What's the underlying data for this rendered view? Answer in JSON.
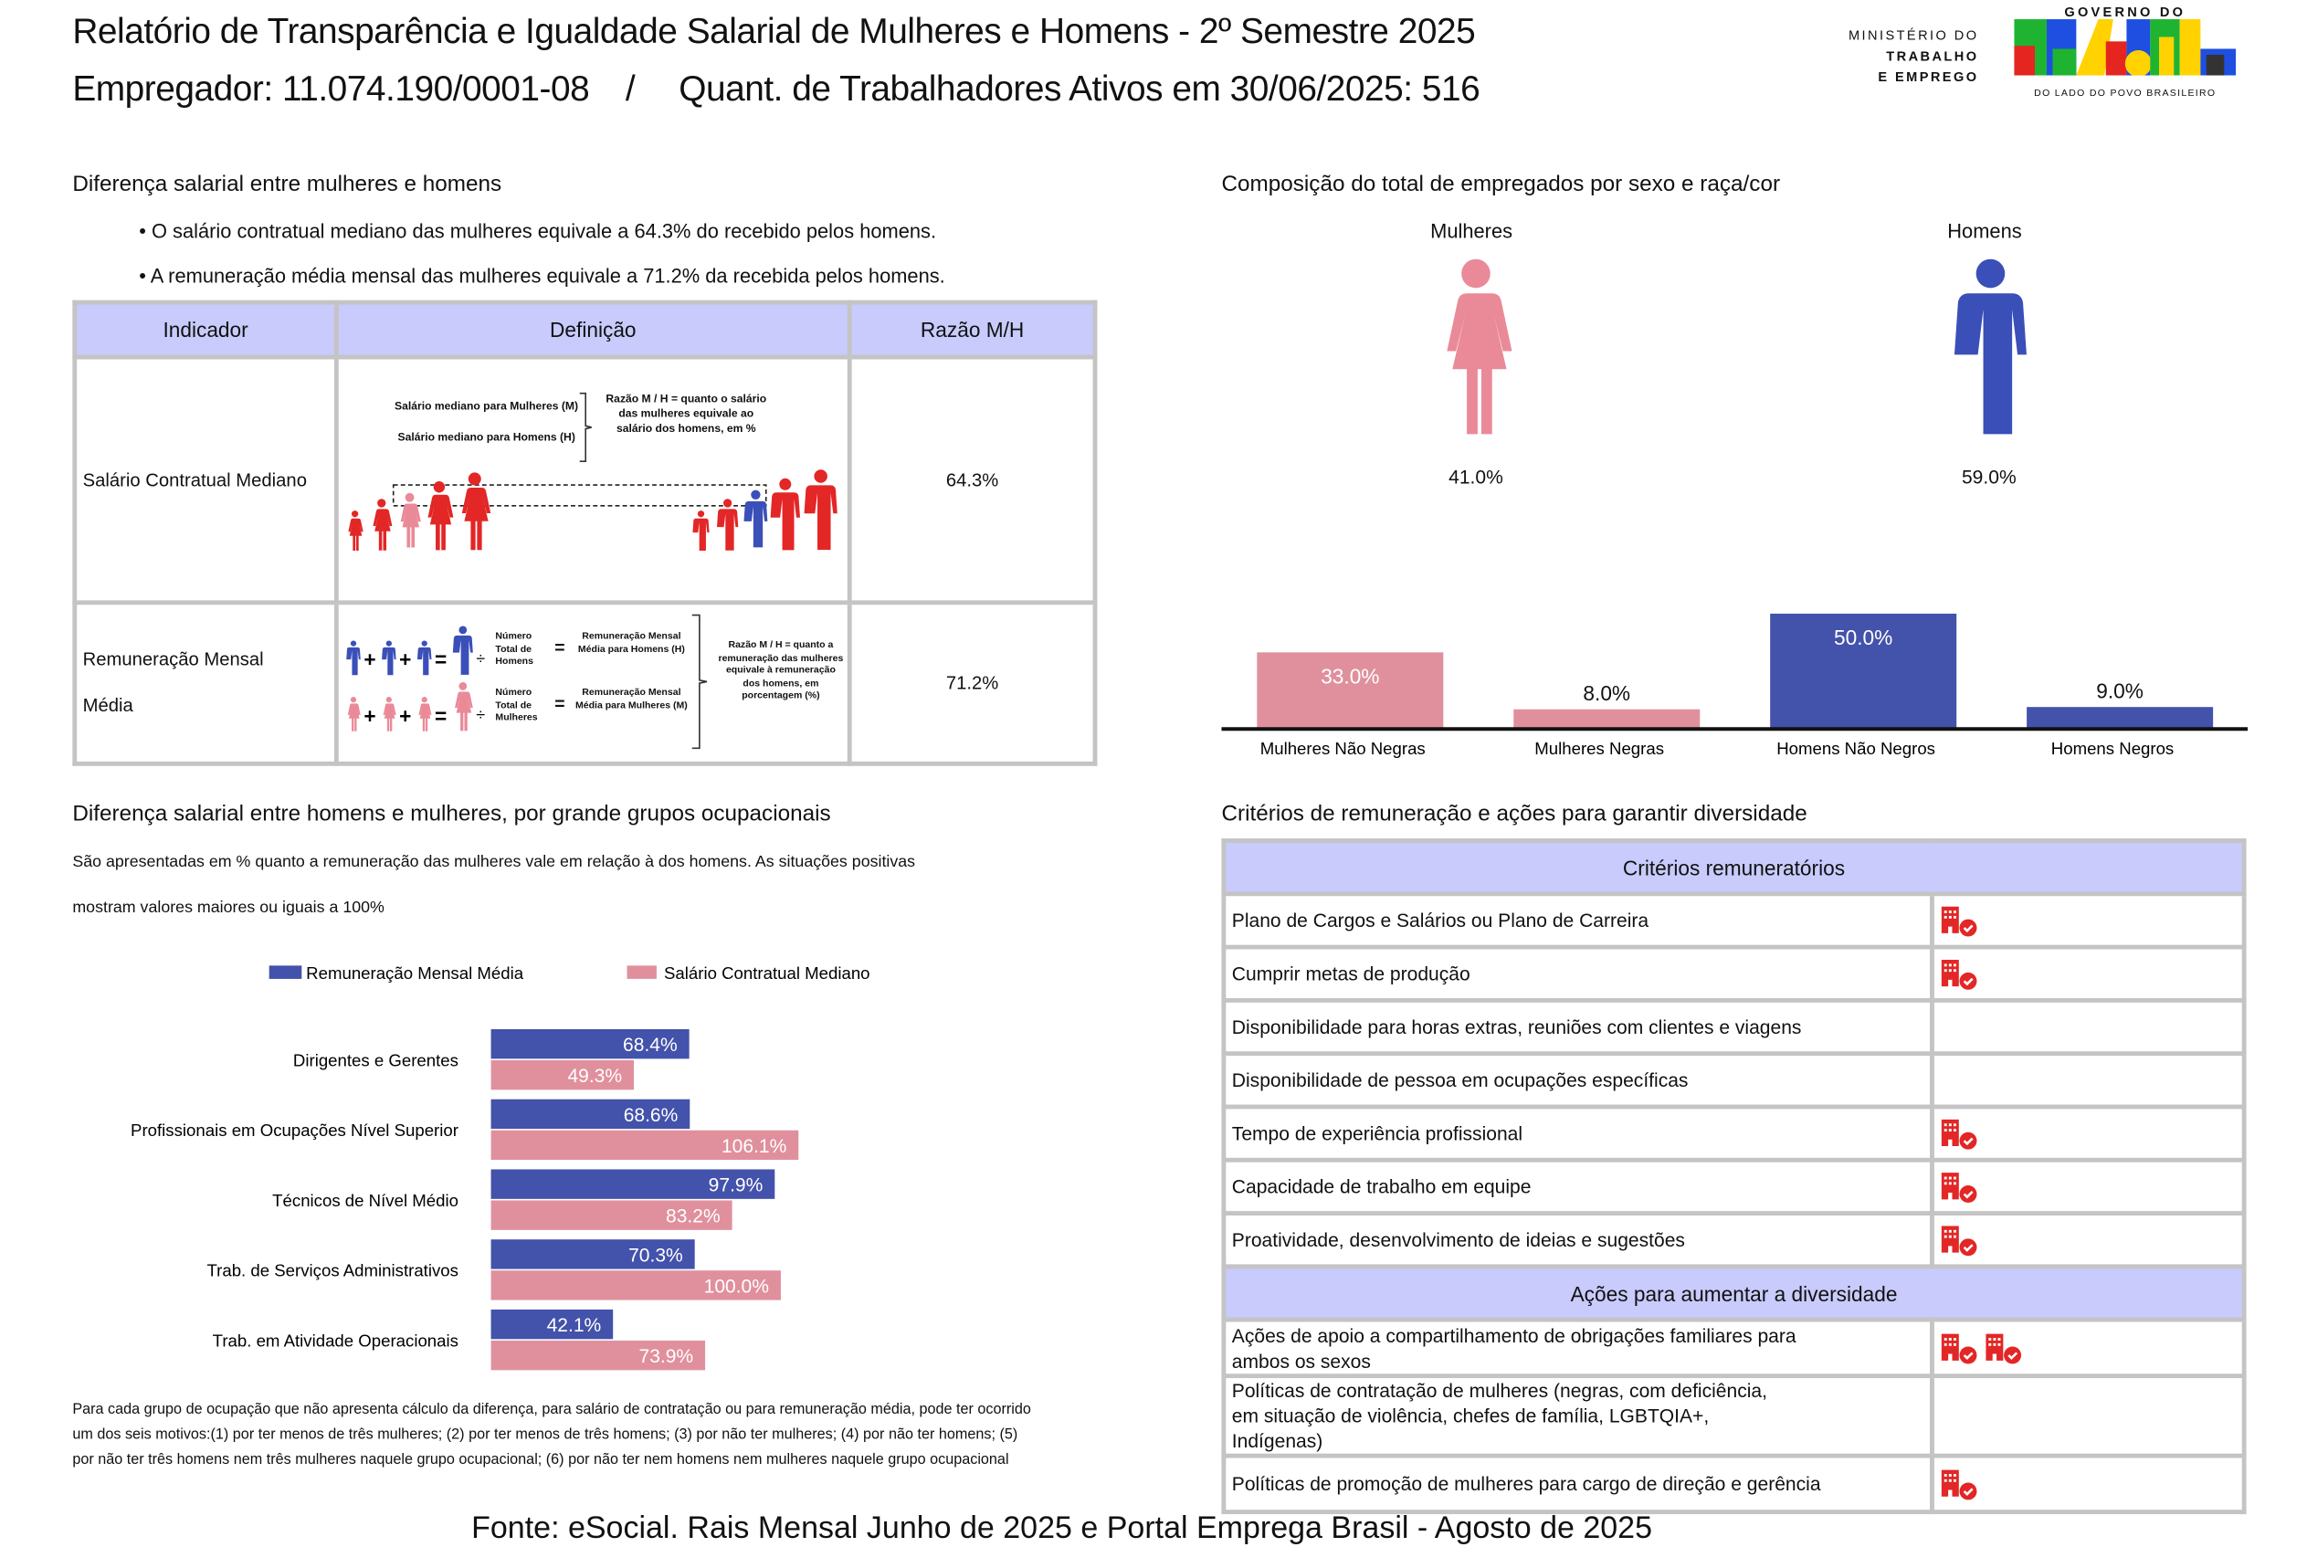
{
  "header": {
    "title": "Relatório de Transparência e Igualdade Salarial de Mulheres e Homens - 2º Semestre 2025",
    "employer_line": "Empregador: 11.074.190/0001-08",
    "separator": "/",
    "workers_line": "Quant. de Trabalhadores Ativos em 30/06/2025: 516"
  },
  "logo": {
    "ministry": [
      "MINISTÉRIO DO",
      "TRABALHO",
      "E EMPREGO"
    ],
    "gov_top": "GOVERNO DO",
    "gov_word": "BRASIL",
    "gov_tagline": "DO LADO DO POVO BRASILEIRO",
    "colors": [
      "#1eb432",
      "#1f4fe0",
      "#ffd200",
      "#e52520",
      "#333333"
    ]
  },
  "salary_gap": {
    "title": "Diferença salarial entre mulheres e homens",
    "bullets": [
      "O salário contratual mediano das mulheres equivale a 64.3% do recebido pelos homens.",
      "A remuneração média mensal das mulheres equivale a 71.2% da recebida pelos homens."
    ],
    "table": {
      "headers": [
        "Indicador",
        "Definição",
        "Razão M/H"
      ],
      "rows": [
        {
          "indicator": "Salário Contratual Mediano",
          "ratio": "64.3%",
          "definition": {
            "line1": "Salário mediano para Mulheres (M)",
            "line2": "Salário mediano para Homens (H)",
            "explain": "Razão M / H = quanto o salário das mulheres equivale ao salário dos homens, em %"
          }
        },
        {
          "indicator_line1": "Remuneração Mensal",
          "indicator_line2": "Média",
          "ratio": "71.2%",
          "definition": {
            "men_count": "Número Total de Homens",
            "men_result": "Remuneração Mensal Média para Homens (H)",
            "women_count": "Número Total de Mulheres",
            "women_result": "Remuneração Mensal Média para Mulheres (M)",
            "plus": "+",
            "equals": "=",
            "divide": "÷",
            "explain": "Razão M / H = quanto a remuneração das mulheres equivale à remuneração dos homens, em porcentagem (%)"
          }
        }
      ]
    }
  },
  "composition": {
    "title": "Composição do total de empregados por sexo e raça/cor",
    "women_label": "Mulheres",
    "women_pct": "41.0%",
    "men_label": "Homens",
    "men_pct": "59.0%"
  },
  "occupational": {
    "title": "Diferença salarial entre homens e mulheres, por grande grupos ocupacionais",
    "desc_line1": "São apresentadas em % quanto a remuneração das mulheres vale em relação à dos homens. As situações positivas",
    "desc_line2": "mostram valores maiores ou iguais a 100%",
    "footnote": "Para cada grupo de ocupação que não apresenta cálculo da diferença, para salário de contratação ou para remuneração média, pode ter ocorrido um dos seis motivos:(1) por ter menos de três mulheres; (2) por ter menos de três homens; (3) por não ter mulheres; (4) por não ter homens; (5) por não ter três homens nem três mulheres naquele grupo ocupacional; (6) por não ter nem homens nem mulheres naquele grupo ocupacional"
  },
  "criteria": {
    "title": "Critérios de remuneração e ações para garantir diversidade",
    "section1": "Critérios remuneratórios",
    "items1": [
      {
        "label": "Plano de Cargos e Salários ou Plano de Carreira",
        "icons": 1
      },
      {
        "label": "Cumprir metas de produção",
        "icons": 1
      },
      {
        "label": "Disponibilidade para horas extras, reuniões com clientes e viagens",
        "icons": 0
      },
      {
        "label": "Disponibilidade de pessoa em ocupações específicas",
        "icons": 0
      },
      {
        "label": "Tempo de experiência profissional",
        "icons": 1
      },
      {
        "label": "Capacidade de trabalho em equipe",
        "icons": 1
      },
      {
        "label": "Proatividade, desenvolvimento de ideias e sugestões",
        "icons": 1
      }
    ],
    "section2": "Ações para aumentar a diversidade",
    "items2": [
      {
        "label": "Ações de apoio a compartilhamento de obrigações familiares para ambos os sexos",
        "icons": 2
      },
      {
        "label": "Políticas de contratação de mulheres (negras, com deficiência, em situação de violência, chefes de família, LGBTQIA+, Indígenas)",
        "icons": 0
      },
      {
        "label": "Políticas de promoção de mulheres para cargo de direção e gerência",
        "icons": 1
      }
    ],
    "icon": "company-check-icon",
    "icon_color": "#e32626"
  },
  "footer": {
    "source": "Fonte: eSocial. Rais Mensal Junho de 2025 e Portal Emprega Brasil - Agosto de 2025"
  },
  "colors": {
    "blue": "#4352aa",
    "pink": "#e0909d",
    "header_bg": "#c8cbfb",
    "red": "#e32626"
  },
  "chart_data": [
    {
      "type": "bar",
      "categories": [
        "Mulheres Não Negras",
        "Mulheres Negras",
        "Homens Não Negros",
        "Homens Negros"
      ],
      "values": [
        33.0,
        8.0,
        50.0,
        9.0
      ],
      "labels": [
        "33.0%",
        "8.0%",
        "50.0%",
        "9.0%"
      ],
      "colors": [
        "#e0909d",
        "#e0909d",
        "#4352aa",
        "#4352aa"
      ],
      "ylim": [
        0,
        50
      ],
      "grid": false
    },
    {
      "type": "bar",
      "orientation": "horizontal",
      "categories": [
        "Dirigentes e Gerentes",
        "Profissionais em Ocupações Nível Superior",
        "Técnicos de Nível Médio",
        "Trab. de Serviços Administrativos",
        "Trab. em Atividade Operacionais"
      ],
      "series": [
        {
          "name": "Remuneração Mensal Média",
          "values": [
            68.4,
            68.6,
            97.9,
            70.3,
            42.1
          ],
          "labels": [
            "68.4%",
            "68.6%",
            "97.9%",
            "70.3%",
            "42.1%"
          ],
          "color": "#4352aa"
        },
        {
          "name": "Salário Contratual Mediano",
          "values": [
            49.3,
            106.1,
            83.2,
            100.0,
            73.9
          ],
          "labels": [
            "49.3%",
            "106.1%",
            "83.2%",
            "100.0%",
            "73.9%"
          ],
          "color": "#e0909d"
        }
      ],
      "legend": "top",
      "grid": false
    }
  ]
}
